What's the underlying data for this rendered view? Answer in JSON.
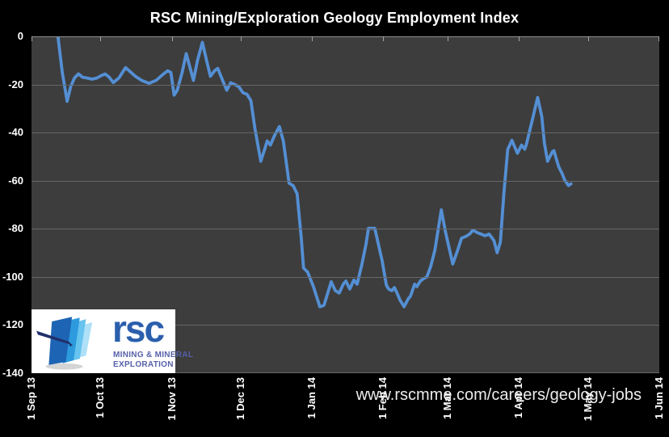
{
  "chart_data": {
    "type": "line",
    "title": "RSC Mining/Exploration Geology Employment Index",
    "xlabel": "",
    "ylabel": "",
    "ylim": [
      -140,
      0
    ],
    "y_ticks": [
      0,
      -20,
      -40,
      -60,
      -80,
      -100,
      -120,
      -140
    ],
    "grid": true,
    "legend": "none",
    "x_days_total": 273,
    "x_ticks": [
      {
        "day": 0,
        "label": "1 Sep 13"
      },
      {
        "day": 30,
        "label": "1 Oct 13"
      },
      {
        "day": 61,
        "label": "1 Nov 13"
      },
      {
        "day": 91,
        "label": "1 Dec 13"
      },
      {
        "day": 122,
        "label": "1 Jan 14"
      },
      {
        "day": 153,
        "label": "1 Feb 14"
      },
      {
        "day": 181,
        "label": "1 Mar 14"
      },
      {
        "day": 212,
        "label": "1 Apr 14"
      },
      {
        "day": 242,
        "label": "1 May 14"
      },
      {
        "day": 273,
        "label": "1 Jun 14"
      }
    ],
    "series": [
      {
        "color": "#548fd4",
        "points": [
          [
            11.5,
            0
          ],
          [
            13.4,
            -15
          ],
          [
            15.5,
            -27
          ],
          [
            17,
            -21
          ],
          [
            18.7,
            -17.3
          ],
          [
            20.4,
            -15.6
          ],
          [
            22.2,
            -17
          ],
          [
            24,
            -17.3
          ],
          [
            26.4,
            -17.8
          ],
          [
            28.5,
            -17.3
          ],
          [
            30.3,
            -16.3
          ],
          [
            32,
            -15.6
          ],
          [
            33.8,
            -17
          ],
          [
            35.6,
            -19.2
          ],
          [
            38,
            -17.3
          ],
          [
            40.9,
            -13
          ],
          [
            43.3,
            -15
          ],
          [
            45.1,
            -16.6
          ],
          [
            47.9,
            -18.3
          ],
          [
            51.1,
            -19.5
          ],
          [
            54.2,
            -18.3
          ],
          [
            57.4,
            -15.6
          ],
          [
            59.2,
            -14.3
          ],
          [
            60.6,
            -15
          ],
          [
            62,
            -24.4
          ],
          [
            63.4,
            -22.4
          ],
          [
            65.5,
            -15
          ],
          [
            67.3,
            -7.2
          ],
          [
            69,
            -13.3
          ],
          [
            70.4,
            -18.3
          ],
          [
            72.2,
            -9.9
          ],
          [
            74.3,
            -2.5
          ],
          [
            76.1,
            -9.9
          ],
          [
            77.8,
            -16.6
          ],
          [
            79.6,
            -14.3
          ],
          [
            81,
            -13.3
          ],
          [
            83.1,
            -18.3
          ],
          [
            84.9,
            -22.4
          ],
          [
            86.6,
            -19.3
          ],
          [
            88.4,
            -20
          ],
          [
            90.2,
            -21
          ],
          [
            91.9,
            -23.4
          ],
          [
            93.7,
            -24.1
          ],
          [
            95.4,
            -26.7
          ],
          [
            97.2,
            -38.5
          ],
          [
            99.7,
            -51.9
          ],
          [
            101.4,
            -46.9
          ],
          [
            102.5,
            -43.5
          ],
          [
            103.9,
            -45.2
          ],
          [
            105.7,
            -41.2
          ],
          [
            107.8,
            -37.5
          ],
          [
            109.5,
            -43.5
          ],
          [
            112,
            -61
          ],
          [
            113.8,
            -62.1
          ],
          [
            115.5,
            -65.4
          ],
          [
            117.3,
            -83.9
          ],
          [
            118.3,
            -96.3
          ],
          [
            120.1,
            -98
          ],
          [
            122.6,
            -104
          ],
          [
            125.4,
            -112.4
          ],
          [
            127.2,
            -111.8
          ],
          [
            128.9,
            -106.4
          ],
          [
            130.3,
            -102
          ],
          [
            132.1,
            -105.7
          ],
          [
            133.8,
            -106.7
          ],
          [
            135.6,
            -103
          ],
          [
            136.7,
            -101.7
          ],
          [
            138.4,
            -105
          ],
          [
            140.2,
            -101.3
          ],
          [
            141.6,
            -103
          ],
          [
            143.7,
            -94.6
          ],
          [
            145.5,
            -86.2
          ],
          [
            146.5,
            -79.8
          ],
          [
            149.3,
            -79.8
          ],
          [
            150.8,
            -86.2
          ],
          [
            152.5,
            -93.3
          ],
          [
            154.3,
            -103.4
          ],
          [
            155.3,
            -105
          ],
          [
            156.7,
            -105.7
          ],
          [
            157.8,
            -104.4
          ],
          [
            158.8,
            -106.4
          ],
          [
            160.3,
            -109.7
          ],
          [
            162,
            -112.4
          ],
          [
            163.8,
            -109.1
          ],
          [
            164.8,
            -108
          ],
          [
            166.6,
            -103
          ],
          [
            167.6,
            -104
          ],
          [
            169.1,
            -101.7
          ],
          [
            170.5,
            -100.7
          ],
          [
            171.9,
            -100
          ],
          [
            173.6,
            -95.6
          ],
          [
            175.4,
            -88.9
          ],
          [
            178.2,
            -72.1
          ],
          [
            180,
            -81.2
          ],
          [
            181,
            -85.5
          ],
          [
            183.2,
            -94.6
          ],
          [
            185.3,
            -88.9
          ],
          [
            187,
            -83.9
          ],
          [
            188.8,
            -83.2
          ],
          [
            190.5,
            -82.2
          ],
          [
            192,
            -80.5
          ],
          [
            193.7,
            -81.5
          ],
          [
            195.5,
            -82.2
          ],
          [
            197.2,
            -82.9
          ],
          [
            199,
            -82.2
          ],
          [
            201.1,
            -84.9
          ],
          [
            202.5,
            -89.9
          ],
          [
            203.9,
            -85.5
          ],
          [
            205.4,
            -65.4
          ],
          [
            207.1,
            -47
          ],
          [
            208.9,
            -43.2
          ],
          [
            211.3,
            -48.6
          ],
          [
            213.1,
            -45.2
          ],
          [
            214.5,
            -46.9
          ],
          [
            215.2,
            -44.9
          ],
          [
            217.7,
            -35.1
          ],
          [
            220.1,
            -25.4
          ],
          [
            221.9,
            -33.4
          ],
          [
            223,
            -44.2
          ],
          [
            224.4,
            -51.9
          ],
          [
            226.5,
            -47.9
          ],
          [
            227.2,
            -47.5
          ],
          [
            228.2,
            -50.9
          ],
          [
            229.3,
            -54.3
          ],
          [
            230.7,
            -56.9
          ],
          [
            231.8,
            -59.6
          ],
          [
            233.5,
            -62
          ],
          [
            234.6,
            -61.3
          ]
        ]
      }
    ]
  },
  "footer": {
    "url": "www.rscmme.com/careers/geology-jobs"
  },
  "logo": {
    "wordmark": "rsc",
    "tagline_line1": "MINING & MINERAL",
    "tagline_line2": "EXPLORATION"
  },
  "colors": {
    "background": "#000000",
    "plot_background": "#3d3d3d",
    "gridline": "#676767",
    "line": "#548fd4",
    "text": "#ffffff",
    "logo_blue": "#2b5fad",
    "logo_tagline_blue": "#5661a8"
  }
}
